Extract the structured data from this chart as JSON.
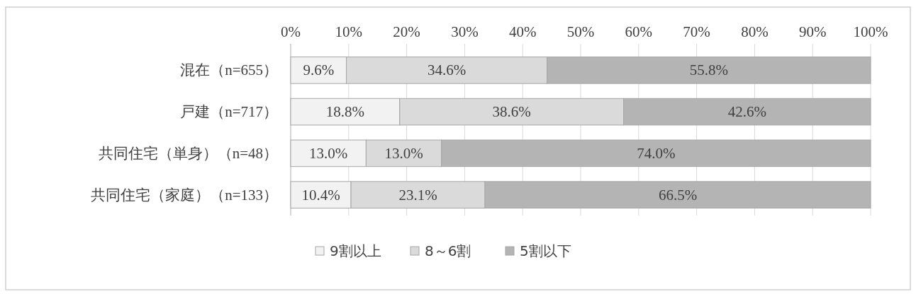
{
  "chart_data": {
    "type": "bar",
    "orientation": "horizontal",
    "stacked": true,
    "categories": [
      "混在（n=655）",
      "戸建（n=717）",
      "共同住宅（単身）（n=48）",
      "共同住宅（家庭）（n=133）"
    ],
    "series": [
      {
        "name": "9割以上",
        "color": "#f2f2f2",
        "values": [
          9.6,
          18.8,
          13.0,
          10.4
        ],
        "value_labels": [
          "9.6%",
          "18.8%",
          "13.0%",
          "10.4%"
        ]
      },
      {
        "name": "8～6割",
        "color": "#dadada",
        "values": [
          34.6,
          38.6,
          13.0,
          23.1
        ],
        "value_labels": [
          "34.6%",
          "38.6%",
          "13.0%",
          "23.1%"
        ]
      },
      {
        "name": "5割以下",
        "color": "#b4b4b4",
        "values": [
          55.8,
          42.6,
          74.0,
          66.5
        ],
        "value_labels": [
          "55.8%",
          "42.6%",
          "74.0%",
          "66.5%"
        ]
      }
    ],
    "xlim": [
      0,
      100
    ],
    "xticks": [
      {
        "value": 0,
        "label": "0%"
      },
      {
        "value": 10,
        "label": "10%"
      },
      {
        "value": 20,
        "label": "20%"
      },
      {
        "value": 30,
        "label": "30%"
      },
      {
        "value": 40,
        "label": "40%"
      },
      {
        "value": 50,
        "label": "50%"
      },
      {
        "value": 60,
        "label": "60%"
      },
      {
        "value": 70,
        "label": "70%"
      },
      {
        "value": 80,
        "label": "80%"
      },
      {
        "value": 90,
        "label": "90%"
      },
      {
        "value": 100,
        "label": "100%"
      }
    ],
    "grid": "x",
    "legend": "bottom"
  }
}
